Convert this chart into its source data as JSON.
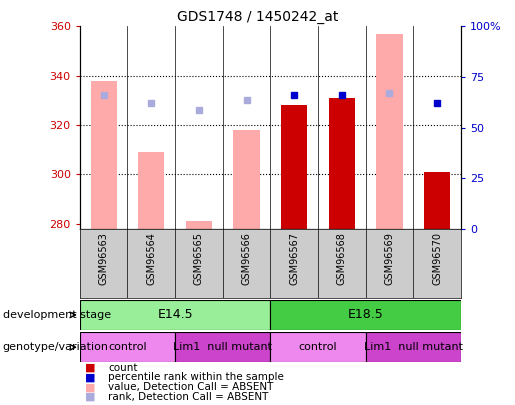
{
  "title": "GDS1748 / 1450242_at",
  "samples": [
    "GSM96563",
    "GSM96564",
    "GSM96565",
    "GSM96566",
    "GSM96567",
    "GSM96568",
    "GSM96569",
    "GSM96570"
  ],
  "value_absent": [
    338,
    309,
    281,
    318,
    null,
    null,
    357,
    null
  ],
  "rank_absent": [
    332,
    329,
    326,
    330,
    null,
    null,
    333,
    null
  ],
  "count_present": [
    null,
    null,
    null,
    null,
    328,
    331,
    null,
    301
  ],
  "rank_present": [
    null,
    null,
    null,
    null,
    332,
    332,
    null,
    329
  ],
  "ylim_left": [
    278,
    360
  ],
  "ylim_right": [
    0,
    100
  ],
  "yticks_left": [
    280,
    300,
    320,
    340,
    360
  ],
  "yticks_right": [
    0,
    25,
    50,
    75,
    100
  ],
  "yticklabels_right": [
    "0",
    "25",
    "50",
    "75",
    "100%"
  ],
  "bar_bottom": 278,
  "dev_stage_groups": [
    {
      "label": "E14.5",
      "start": 0,
      "end": 3,
      "color": "#99ee99"
    },
    {
      "label": "E18.5",
      "start": 4,
      "end": 7,
      "color": "#44cc44"
    }
  ],
  "genotype_groups": [
    {
      "label": "control",
      "start": 0,
      "end": 1,
      "color": "#ee88ee"
    },
    {
      "label": "Lim1  null mutant",
      "start": 2,
      "end": 3,
      "color": "#cc44cc"
    },
    {
      "label": "control",
      "start": 4,
      "end": 5,
      "color": "#ee88ee"
    },
    {
      "label": "Lim1  null mutant",
      "start": 6,
      "end": 7,
      "color": "#cc44cc"
    }
  ],
  "color_bar_absent": "#ffaaaa",
  "color_rank_absent": "#aaaadd",
  "color_bar_present": "#cc0000",
  "color_rank_present": "#0000cc",
  "label_color_left": "#cc0000",
  "label_color_right": "#0000cc",
  "grid_yticks": [
    300,
    320,
    340
  ],
  "legend_items": [
    {
      "color": "#cc0000",
      "label": "count"
    },
    {
      "color": "#0000cc",
      "label": "percentile rank within the sample"
    },
    {
      "color": "#ffaaaa",
      "label": "value, Detection Call = ABSENT"
    },
    {
      "color": "#aaaadd",
      "label": "rank, Detection Call = ABSENT"
    }
  ]
}
